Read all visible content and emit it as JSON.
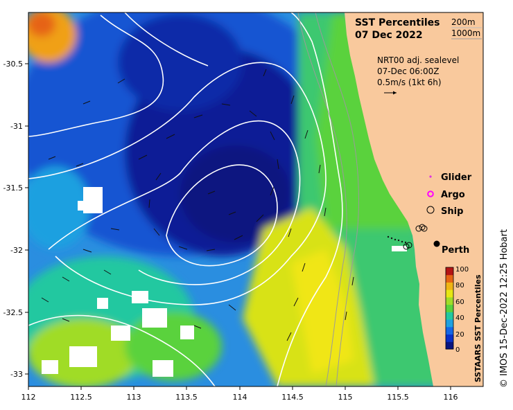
{
  "title": {
    "line1": "SST Percentiles",
    "line2": "07 Dec 2022"
  },
  "isobaths": [
    "200m",
    "1000m"
  ],
  "current_info": {
    "line1": "NRT00 adj. sealevel",
    "line2": "07-Dec 06:00Z",
    "line3": "0.5m/s (1kt 6h)"
  },
  "legend_items": [
    {
      "label": "Glider",
      "symbol": "dot",
      "color": "#e033e0"
    },
    {
      "label": "Argo",
      "symbol": "circle",
      "color": "#ff00ff"
    },
    {
      "label": "Ship",
      "symbol": "circle",
      "color": "#000000"
    }
  ],
  "city": {
    "label": "Perth",
    "lon": 115.86,
    "lat": -31.95
  },
  "colorbar": {
    "title": "SSTAARS SST Percentiles",
    "ticks": [
      "100",
      "80",
      "60",
      "40",
      "20",
      "0"
    ],
    "colors": [
      "#081480",
      "#0830c8",
      "#1466e6",
      "#1fa0e0",
      "#22c8a0",
      "#5ad23c",
      "#a0dc28",
      "#e6e614",
      "#f0b414",
      "#e66414",
      "#b41414"
    ]
  },
  "credit": "© IMOS 15-Dec-2022 12:25 Hobart",
  "x_ticks": [
    "112",
    "112.5",
    "113",
    "113.5",
    "114",
    "114.5",
    "115",
    "115.5",
    "116"
  ],
  "y_ticks": [
    "-30.5",
    "-31",
    "-31.5",
    "-32",
    "-32.5",
    "-33"
  ],
  "colors": {
    "land": "#f9c99d",
    "contour": "#ffffff",
    "isobath": "#9a9a9a",
    "label_bg": "#f9c99d"
  }
}
